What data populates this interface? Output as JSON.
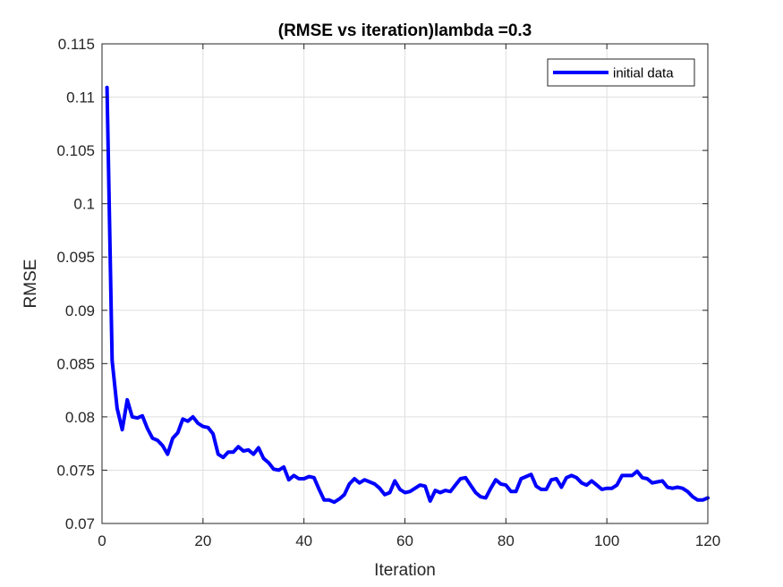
{
  "chart_data": {
    "type": "line",
    "title": "(RMSE vs iteration)lambda =0.3",
    "xlabel": "Iteration",
    "ylabel": "RMSE",
    "xlim": [
      0,
      120
    ],
    "ylim": [
      0.07,
      0.115
    ],
    "x_ticks": [
      0,
      20,
      40,
      60,
      80,
      100,
      120
    ],
    "x_tick_labels": [
      "0",
      "20",
      "40",
      "60",
      "80",
      "100",
      "120"
    ],
    "y_ticks": [
      0.07,
      0.075,
      0.08,
      0.085,
      0.09,
      0.095,
      0.1,
      0.105,
      0.11,
      0.115
    ],
    "y_tick_labels": [
      "0.07",
      "0.075",
      "0.08",
      "0.085",
      "0.09",
      "0.095",
      "0.1",
      "0.105",
      "0.11",
      "0.115"
    ],
    "grid": true,
    "legend_position": "top-right",
    "series": [
      {
        "name": "initial data",
        "color": "#0000ff",
        "x": [
          1,
          2,
          3,
          4,
          5,
          6,
          7,
          8,
          9,
          10,
          11,
          12,
          13,
          14,
          15,
          16,
          17,
          18,
          19,
          20,
          21,
          22,
          23,
          24,
          25,
          26,
          27,
          28,
          29,
          30,
          31,
          32,
          33,
          34,
          35,
          36,
          37,
          38,
          39,
          40,
          41,
          42,
          43,
          44,
          45,
          46,
          47,
          48,
          49,
          50,
          51,
          52,
          53,
          54,
          55,
          56,
          57,
          58,
          59,
          60,
          61,
          62,
          63,
          64,
          65,
          66,
          67,
          68,
          69,
          70,
          71,
          72,
          73,
          74,
          75,
          76,
          77,
          78,
          79,
          80,
          81,
          82,
          83,
          84,
          85,
          86,
          87,
          88,
          89,
          90,
          91,
          92,
          93,
          94,
          95,
          96,
          97,
          98,
          99,
          100,
          101,
          102,
          103,
          104,
          105,
          106,
          107,
          108,
          109,
          110,
          111,
          112,
          113,
          114,
          115,
          116,
          117,
          118,
          119,
          120
        ],
        "y": [
          0.1109,
          0.0853,
          0.0808,
          0.0788,
          0.0816,
          0.08,
          0.0799,
          0.0801,
          0.0789,
          0.078,
          0.0778,
          0.0773,
          0.0765,
          0.078,
          0.0785,
          0.0798,
          0.0796,
          0.08,
          0.0794,
          0.0791,
          0.079,
          0.0784,
          0.0765,
          0.0762,
          0.0767,
          0.0767,
          0.0772,
          0.0768,
          0.0769,
          0.0765,
          0.0771,
          0.0761,
          0.0757,
          0.0751,
          0.075,
          0.0753,
          0.0741,
          0.0745,
          0.0742,
          0.0742,
          0.0744,
          0.0743,
          0.0732,
          0.0722,
          0.0722,
          0.072,
          0.0723,
          0.0727,
          0.0737,
          0.0742,
          0.0738,
          0.0741,
          0.0739,
          0.0737,
          0.0733,
          0.0727,
          0.0729,
          0.074,
          0.0732,
          0.0729,
          0.073,
          0.0733,
          0.0736,
          0.0735,
          0.0721,
          0.0731,
          0.0729,
          0.0731,
          0.073,
          0.0736,
          0.0742,
          0.0743,
          0.0736,
          0.0729,
          0.0725,
          0.0724,
          0.0733,
          0.0741,
          0.0737,
          0.0736,
          0.073,
          0.073,
          0.0742,
          0.0744,
          0.0746,
          0.0735,
          0.0732,
          0.0732,
          0.0741,
          0.0742,
          0.0734,
          0.0743,
          0.0745,
          0.0743,
          0.0738,
          0.0736,
          0.074,
          0.0736,
          0.0732,
          0.0733,
          0.0733,
          0.0736,
          0.0745,
          0.0745,
          0.0745,
          0.0749,
          0.0743,
          0.0742,
          0.0738,
          0.0739,
          0.074,
          0.0734,
          0.0733,
          0.0734,
          0.0733,
          0.073,
          0.0725,
          0.0722,
          0.0722,
          0.0724
        ]
      }
    ]
  }
}
